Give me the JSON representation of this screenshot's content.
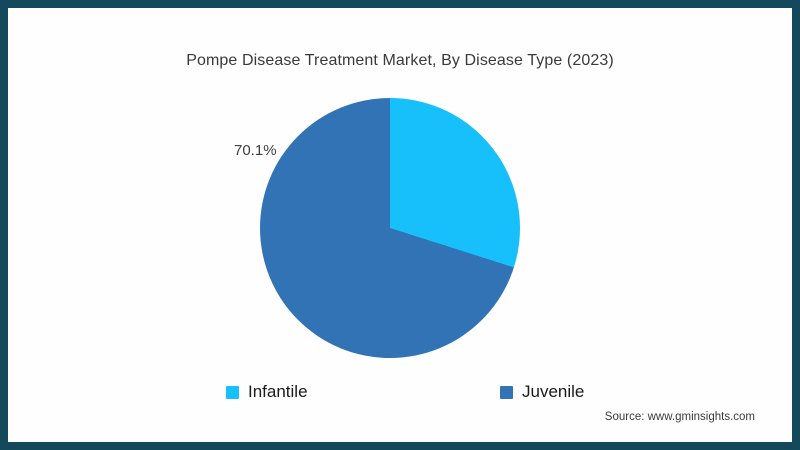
{
  "page": {
    "border_color": "#14495c",
    "background_color": "#fefefe"
  },
  "header": {
    "title": "Pompe Disease Treatment Market, By Disease Type (2023)"
  },
  "chart_data": {
    "type": "pie",
    "title": "Pompe Disease Treatment Market, By Disease Type (2023)",
    "slices": [
      {
        "label": "Infantile",
        "value": 29.9,
        "color": "#17c0fa"
      },
      {
        "label": "Juvenile",
        "value": 70.1,
        "color": "#3173b4"
      }
    ],
    "start_angle_deg": 0,
    "direction": "clockwise",
    "data_labels": [
      {
        "text": "70.1%",
        "slice": "Juvenile",
        "position": "outside-upper-left"
      }
    ],
    "legend_position": "bottom"
  },
  "labels": {
    "juvenile_share": "70.1%"
  },
  "legend": {
    "items": [
      {
        "label": "Infantile",
        "color": "#17c0fa"
      },
      {
        "label": "Juvenile",
        "color": "#3173b4"
      }
    ]
  },
  "footer": {
    "source": "Source: www.gminsights.com"
  }
}
